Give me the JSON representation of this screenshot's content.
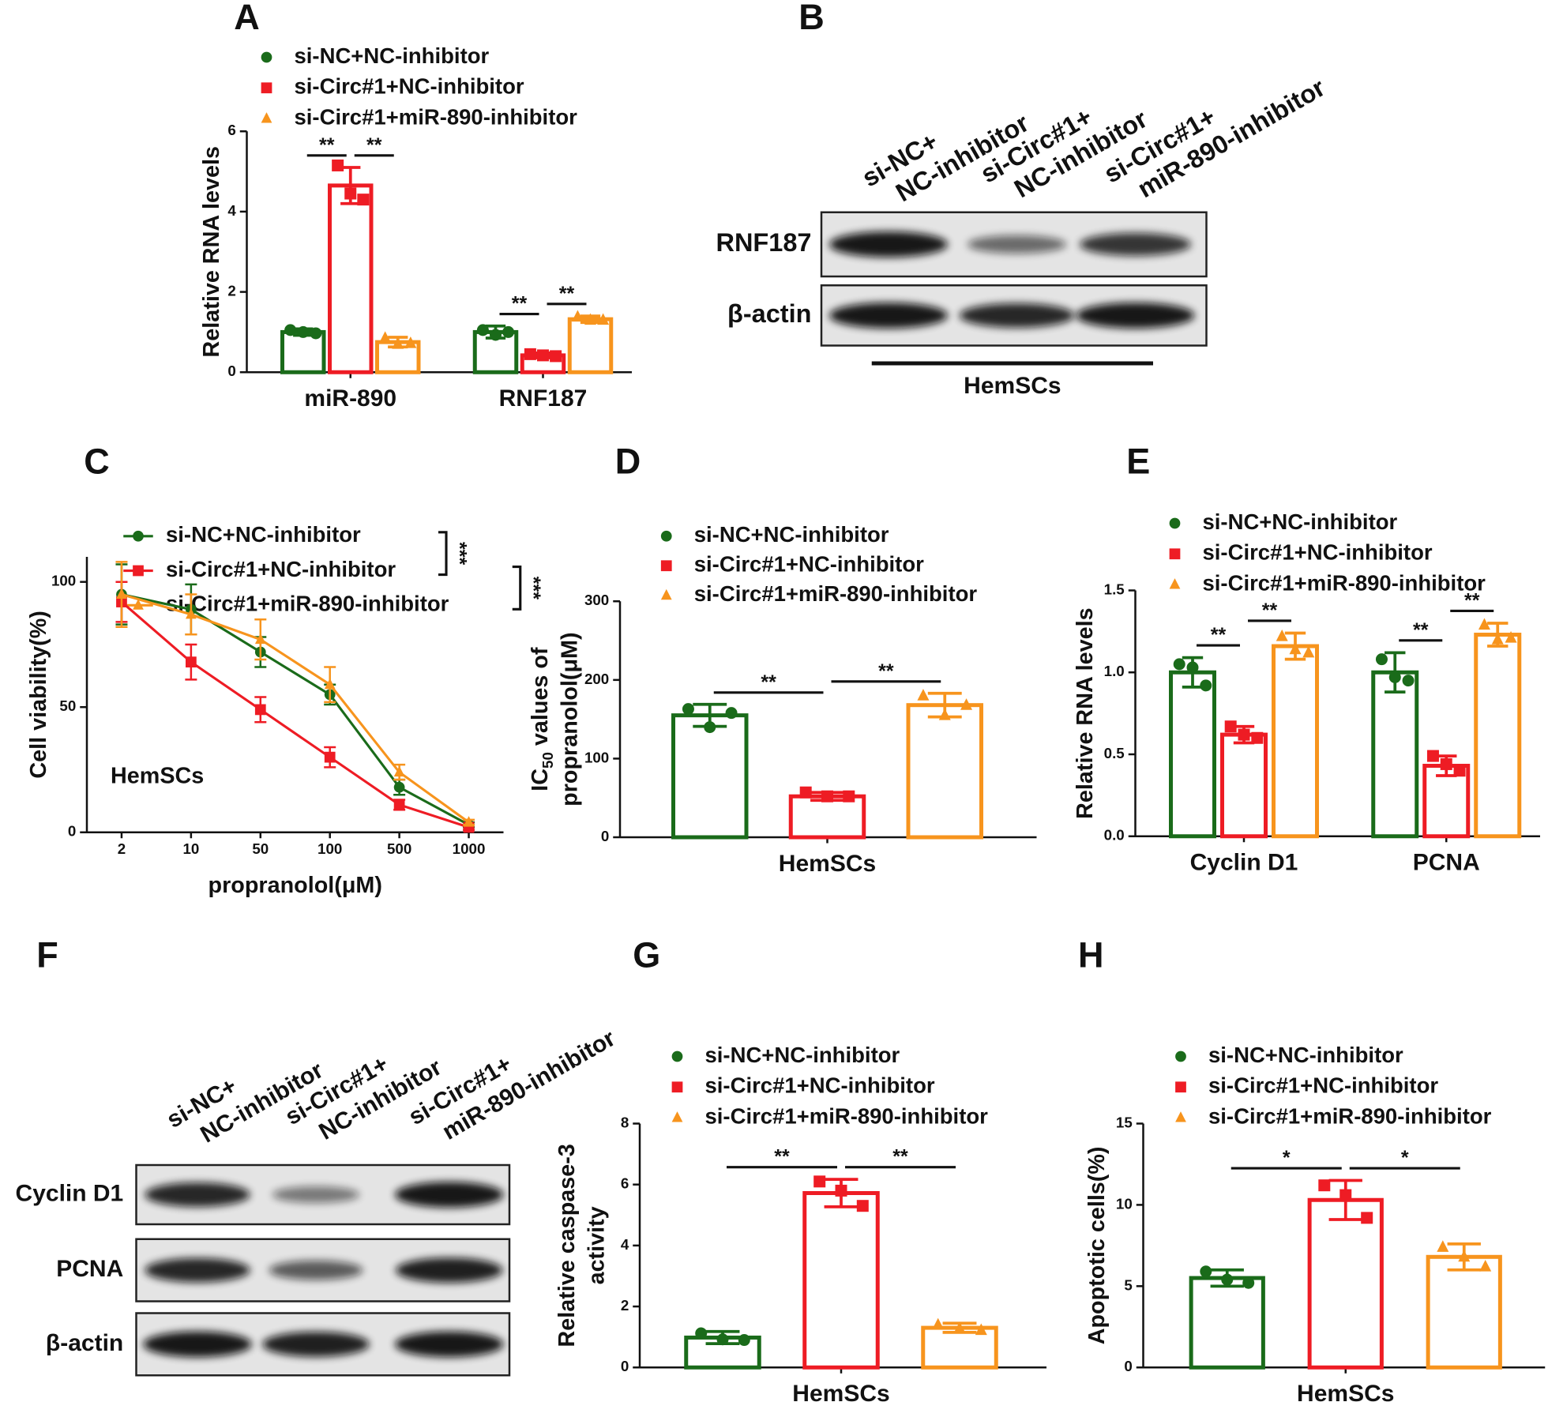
{
  "panel_labels": [
    "A",
    "B",
    "C",
    "D",
    "E",
    "F",
    "G",
    "H"
  ],
  "chart_data": [
    {
      "type": "bar",
      "categories": [
        "miR-890",
        "RNF187"
      ],
      "y_label": [
        [
          "Relative RNA levels"
        ]
      ],
      "ylim": [
        0,
        6
      ],
      "yticks": [
        0,
        2,
        4,
        6
      ],
      "series": [
        {
          "name": "si-NC+NC-inhibitor",
          "color": "#1a6b1a",
          "marker": "circle",
          "values": [
            1.0,
            1.0
          ],
          "errors": [
            0.08,
            0.15
          ],
          "points": [
            [
              1.05,
              1.0,
              0.97
            ],
            [
              1.05,
              0.93,
              1.0
            ]
          ]
        },
        {
          "name": "si-Circ#1+NC-inhibitor",
          "color": "#ee1c24",
          "marker": "square",
          "values": [
            4.65,
            0.42
          ],
          "errors": [
            0.45,
            0.06
          ],
          "points": [
            [
              5.15,
              4.45,
              4.3
            ],
            [
              0.45,
              0.42,
              0.4
            ]
          ]
        },
        {
          "name": "si-Circ#1+miR-890-inhibitor",
          "color": "#f7941d",
          "marker": "triangle",
          "values": [
            0.75,
            1.32
          ],
          "errors": [
            0.12,
            0.08
          ],
          "points": [
            [
              0.85,
              0.7,
              0.72
            ],
            [
              1.38,
              1.3,
              1.3
            ]
          ]
        }
      ],
      "significance": [
        {
          "label": "**",
          "category": 0,
          "from": 0,
          "to": 1
        },
        {
          "label": "**",
          "category": 0,
          "from": 1,
          "to": 2
        },
        {
          "label": "**",
          "category": 1,
          "from": 0,
          "to": 1
        },
        {
          "label": "**",
          "category": 1,
          "from": 1,
          "to": 2
        }
      ]
    },
    {
      "type": "line",
      "categories": [
        "2",
        "10",
        "50",
        "100",
        "500",
        "1000"
      ],
      "x_label": "propranolol(μM)",
      "y_label": [
        [
          "Cell viability(%)"
        ]
      ],
      "annotation": "HemSCs",
      "ylim": [
        0,
        110
      ],
      "yticks": [
        0,
        50,
        100
      ],
      "series": [
        {
          "name": "si-NC+NC-inhibitor",
          "color": "#1a6b1a",
          "marker": "circle",
          "values": [
            95,
            89,
            72,
            55,
            18,
            3
          ],
          "errors": [
            12,
            10,
            6,
            4,
            3,
            1
          ]
        },
        {
          "name": "si-Circ#1+NC-inhibitor",
          "color": "#ee1c24",
          "marker": "square",
          "values": [
            92,
            68,
            49,
            30,
            11,
            2
          ],
          "errors": [
            8,
            7,
            5,
            4,
            2,
            1
          ]
        },
        {
          "name": "si-Circ#1+miR-890-inhibitor",
          "color": "#f7941d",
          "marker": "triangle",
          "values": [
            95,
            87,
            77,
            59,
            24,
            4
          ],
          "errors": [
            13,
            8,
            8,
            7,
            3,
            1
          ]
        }
      ],
      "significance": [
        {
          "label": "***",
          "from": 0,
          "to": 1
        },
        {
          "label": "***",
          "from": 1,
          "to": 2
        }
      ]
    },
    {
      "type": "bar",
      "categories": [
        "HemSCs"
      ],
      "y_label": [
        [
          "IC",
          "50",
          " values of"
        ],
        [
          "propranolol(μM)"
        ]
      ],
      "ylim": [
        0,
        300
      ],
      "yticks": [
        0,
        100,
        200,
        300
      ],
      "series": [
        {
          "name": "si-NC+NC-inhibitor",
          "color": "#1a6b1a",
          "marker": "circle",
          "values": [
            155
          ],
          "errors": [
            14
          ],
          "points": [
            [
              163,
              140,
              158
            ]
          ]
        },
        {
          "name": "si-Circ#1+NC-inhibitor",
          "color": "#ee1c24",
          "marker": "square",
          "values": [
            52
          ],
          "errors": [
            5
          ],
          "points": [
            [
              57,
              52,
              52
            ]
          ]
        },
        {
          "name": "si-Circ#1+miR-890-inhibitor",
          "color": "#f7941d",
          "marker": "triangle",
          "values": [
            168
          ],
          "errors": [
            15
          ],
          "points": [
            [
              180,
              155,
              168
            ]
          ]
        }
      ],
      "significance": [
        {
          "label": "**",
          "category": 0,
          "from": 0,
          "to": 1
        },
        {
          "label": "**",
          "category": 0,
          "from": 1,
          "to": 2
        }
      ]
    },
    {
      "type": "bar",
      "categories": [
        "Cyclin D1",
        "PCNA"
      ],
      "y_label": [
        [
          "Relative RNA levels"
        ]
      ],
      "ylim": [
        0,
        1.5
      ],
      "yticks": [
        {
          "value": 0,
          "label": "0.0"
        },
        0.5,
        {
          "value": 1,
          "label": "1.0"
        },
        1.5
      ],
      "series": [
        {
          "name": "si-NC+NC-inhibitor",
          "color": "#1a6b1a",
          "marker": "circle",
          "values": [
            1.0,
            1.0
          ],
          "errors": [
            0.09,
            0.12
          ],
          "points": [
            [
              1.05,
              1.03,
              0.92
            ],
            [
              1.08,
              0.97,
              0.95
            ]
          ]
        },
        {
          "name": "si-Circ#1+NC-inhibitor",
          "color": "#ee1c24",
          "marker": "square",
          "values": [
            0.62,
            0.43
          ],
          "errors": [
            0.05,
            0.06
          ],
          "points": [
            [
              0.67,
              0.62,
              0.6
            ],
            [
              0.49,
              0.44,
              0.4
            ]
          ]
        },
        {
          "name": "si-Circ#1+miR-890-inhibitor",
          "color": "#f7941d",
          "marker": "triangle",
          "values": [
            1.16,
            1.23
          ],
          "errors": [
            0.08,
            0.07
          ],
          "points": [
            [
              1.22,
              1.14,
              1.12
            ],
            [
              1.29,
              1.2,
              1.21
            ]
          ]
        }
      ],
      "significance": [
        {
          "label": "**",
          "category": 0,
          "from": 0,
          "to": 1
        },
        {
          "label": "**",
          "category": 0,
          "from": 1,
          "to": 2
        },
        {
          "label": "**",
          "category": 1,
          "from": 0,
          "to": 1
        },
        {
          "label": "**",
          "category": 1,
          "from": 1,
          "to": 2
        }
      ]
    },
    {
      "type": "bar",
      "categories": [
        "HemSCs"
      ],
      "y_label": [
        [
          "Relative caspase-3"
        ],
        [
          "activity"
        ]
      ],
      "ylim": [
        0,
        8
      ],
      "yticks": [
        0,
        2,
        4,
        6,
        8
      ],
      "series": [
        {
          "name": "si-NC+NC-inhibitor",
          "color": "#1a6b1a",
          "marker": "circle",
          "values": [
            0.98
          ],
          "errors": [
            0.2
          ],
          "points": [
            [
              1.12,
              0.92,
              0.9
            ]
          ]
        },
        {
          "name": "si-Circ#1+NC-inhibitor",
          "color": "#ee1c24",
          "marker": "square",
          "values": [
            5.72
          ],
          "errors": [
            0.45
          ],
          "points": [
            [
              6.1,
              5.8,
              5.3
            ]
          ]
        },
        {
          "name": "si-Circ#1+miR-890-inhibitor",
          "color": "#f7941d",
          "marker": "triangle",
          "values": [
            1.3
          ],
          "errors": [
            0.15
          ],
          "points": [
            [
              1.4,
              1.28,
              1.22
            ]
          ]
        }
      ],
      "significance": [
        {
          "label": "**",
          "category": 0,
          "from": 0,
          "to": 1
        },
        {
          "label": "**",
          "category": 0,
          "from": 1,
          "to": 2
        }
      ]
    },
    {
      "type": "bar",
      "categories": [
        "HemSCs"
      ],
      "y_label": [
        [
          "Apoptotic cells(%)"
        ]
      ],
      "ylim": [
        0,
        15
      ],
      "yticks": [
        0,
        5,
        10,
        15
      ],
      "series": [
        {
          "name": "si-NC+NC-inhibitor",
          "color": "#1a6b1a",
          "marker": "circle",
          "values": [
            5.5
          ],
          "errors": [
            0.5
          ],
          "points": [
            [
              5.9,
              5.4,
              5.2
            ]
          ]
        },
        {
          "name": "si-Circ#1+NC-inhibitor",
          "color": "#ee1c24",
          "marker": "square",
          "values": [
            10.3
          ],
          "errors": [
            1.2
          ],
          "points": [
            [
              11.2,
              10.6,
              9.2
            ]
          ]
        },
        {
          "name": "si-Circ#1+miR-890-inhibitor",
          "color": "#f7941d",
          "marker": "triangle",
          "values": [
            6.8
          ],
          "errors": [
            0.8
          ],
          "points": [
            [
              7.4,
              6.8,
              6.2
            ]
          ]
        }
      ],
      "significance": [
        {
          "label": "*",
          "category": 0,
          "from": 0,
          "to": 1
        },
        {
          "label": "*",
          "category": 0,
          "from": 1,
          "to": 2
        }
      ]
    }
  ],
  "blots": [
    {
      "lanes": [
        [
          "si-NC+",
          "NC-inhibitor"
        ],
        [
          "si-Circ#1+",
          "NC-inhibitor"
        ],
        [
          "si-Circ#1+",
          "miR-890-inhibitor"
        ]
      ],
      "rows": [
        "RNF187",
        "β-actin"
      ],
      "footer": "HemSCs"
    },
    {
      "lanes": [
        [
          "si-NC+",
          "NC-inhibitor"
        ],
        [
          "si-Circ#1+",
          "NC-inhibitor"
        ],
        [
          "si-Circ#1+",
          "miR-890-inhibitor"
        ]
      ],
      "rows": [
        "Cyclin D1",
        "PCNA",
        "β-actin"
      ]
    }
  ]
}
